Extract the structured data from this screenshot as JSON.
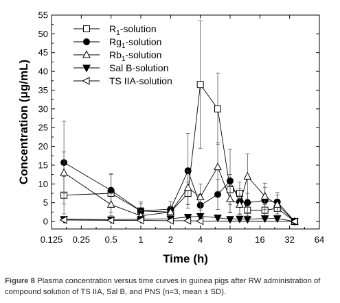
{
  "caption": {
    "label": "Figure 8",
    "text": "Plasma concentration versus time curves in guinea pigs after RW administration of compound solution of TS IIA, Sal B, and PNS (n=3, mean ± SD)."
  },
  "chart_data": {
    "type": "line",
    "xlabel": "Time (h)",
    "ylabel": "Concentration (μg/mL)",
    "x_scale": "log2",
    "xlim": [
      0.125,
      64
    ],
    "ylim": [
      -2,
      55
    ],
    "x_ticks": [
      0.125,
      0.25,
      0.5,
      1,
      2,
      4,
      8,
      16,
      32,
      64
    ],
    "x_tick_labels": [
      "0.125",
      "0.25",
      "0.5",
      "1",
      "2",
      "4",
      "8",
      "16",
      "32",
      "64"
    ],
    "y_ticks": [
      0,
      5,
      10,
      15,
      20,
      25,
      30,
      35,
      40,
      45,
      50,
      55
    ],
    "y_tick_labels": [
      "0",
      "5",
      "10",
      "15",
      "20",
      "25",
      "30",
      "35",
      "40",
      "45",
      "50",
      "55"
    ],
    "legend_position": "top-left",
    "series": [
      {
        "name": "R1-solution",
        "name_main": "R",
        "name_sub": "1",
        "name_rest": "-solution",
        "marker": "open-square",
        "points": [
          [
            0.167,
            7.0,
            5.0
          ],
          [
            0.5,
            7.5,
            5.0
          ],
          [
            1,
            2.8,
            2.0
          ],
          [
            2,
            2.5,
            1.5
          ],
          [
            3,
            7.5,
            3.0
          ],
          [
            4,
            36.5,
            17.0
          ],
          [
            6,
            30.0,
            9.5
          ],
          [
            8,
            8.5,
            4.0
          ],
          [
            10,
            7.5,
            3.0
          ],
          [
            12,
            3.0,
            1.5
          ],
          [
            18,
            3.0,
            1.5
          ],
          [
            24,
            3.5,
            1.5
          ],
          [
            36,
            0.0,
            0.3
          ]
        ]
      },
      {
        "name": "Rg1-solution",
        "name_main": "Rg",
        "name_sub": "1",
        "name_rest": "-solution",
        "marker": "filled-circle",
        "points": [
          [
            0.167,
            15.7,
            11.0
          ],
          [
            0.5,
            8.3,
            4.5
          ],
          [
            1,
            2.8,
            2.5
          ],
          [
            2,
            3.3,
            2.0
          ],
          [
            3,
            13.5,
            10.0
          ],
          [
            4,
            4.3,
            3.0
          ],
          [
            6,
            7.2,
            4.0
          ],
          [
            8,
            10.8,
            8.5
          ],
          [
            10,
            5.3,
            3.5
          ],
          [
            12,
            5.0,
            2.5
          ],
          [
            18,
            5.6,
            3.5
          ],
          [
            24,
            5.2,
            2.5
          ],
          [
            36,
            0.0,
            0.3
          ]
        ]
      },
      {
        "name": "Rb1-solution",
        "name_main": "Rb",
        "name_sub": "1",
        "name_rest": "-solution",
        "marker": "open-triangle-up",
        "points": [
          [
            0.167,
            13.0,
            5.5
          ],
          [
            0.5,
            4.5,
            3.0
          ],
          [
            1,
            1.5,
            1.5
          ],
          [
            2,
            2.5,
            1.5
          ],
          [
            3,
            9.0,
            4.5
          ],
          [
            4,
            6.5,
            3.5
          ],
          [
            6,
            14.5,
            6.5
          ],
          [
            8,
            6.0,
            3.5
          ],
          [
            10,
            4.5,
            2.5
          ],
          [
            12,
            12.0,
            6.0
          ],
          [
            18,
            6.7,
            3.5
          ],
          [
            24,
            4.5,
            2.5
          ],
          [
            36,
            0.0,
            0.3
          ]
        ]
      },
      {
        "name": "Sal B-solution",
        "name_main": "Sal B-solution",
        "name_sub": "",
        "name_rest": "",
        "marker": "filled-triangle-down",
        "points": [
          [
            0.167,
            0.6,
            0.4
          ],
          [
            0.5,
            0.5,
            0.4
          ],
          [
            1,
            0.6,
            0.4
          ],
          [
            2,
            0.7,
            0.4
          ],
          [
            3,
            1.2,
            0.6
          ],
          [
            4,
            1.4,
            0.7
          ],
          [
            6,
            1.0,
            0.5
          ],
          [
            8,
            0.6,
            0.4
          ],
          [
            10,
            0.7,
            0.4
          ],
          [
            12,
            0.6,
            0.4
          ],
          [
            18,
            0.8,
            0.4
          ],
          [
            24,
            0.8,
            0.4
          ],
          [
            36,
            0.0,
            0.2
          ]
        ]
      },
      {
        "name": "TS IIA-solution",
        "name_main": "TS IIA-solution",
        "name_sub": "",
        "name_rest": "",
        "marker": "open-triangle-left",
        "points": [
          [
            0.167,
            0.4,
            0.3
          ],
          [
            0.5,
            0.3,
            0.3
          ],
          [
            1,
            0.3,
            0.3
          ],
          [
            2,
            0.2,
            0.2
          ],
          [
            3,
            0.2,
            0.2
          ],
          [
            4,
            0.1,
            0.2
          ],
          [
            36,
            0.0,
            0.1
          ]
        ]
      }
    ]
  }
}
